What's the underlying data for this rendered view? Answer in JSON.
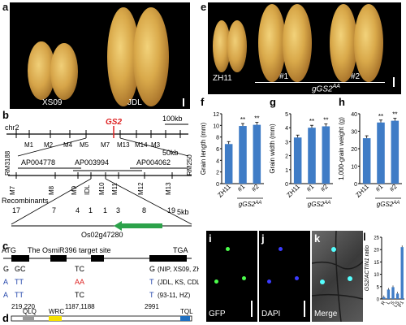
{
  "panels": {
    "a": {
      "label": "a",
      "left_text": "XS09",
      "right_text": "JDL"
    },
    "e": {
      "label": "e",
      "ctrl": "ZH11",
      "line1": "#1",
      "line2": "#2",
      "genotype": "gGS2",
      "genotype_sup": "AA"
    },
    "b": {
      "label": "b",
      "chr": "chr2",
      "gene": "GS2",
      "scale": "100kb",
      "markers_top": [
        "RM3188",
        "M1",
        "M2",
        "M4",
        "M5",
        "M7",
        "M13",
        "M14",
        "M3",
        "RM250"
      ]
    },
    "b2": {
      "scale2": "50kb",
      "bacs": [
        "AP004778",
        "AP003994",
        "AP004062"
      ],
      "markers": [
        "M7",
        "M8",
        "M9",
        "IDL",
        "M10",
        "M11",
        "M12",
        "M13"
      ],
      "recombinants_label": "Recombinants",
      "recombinants": [
        "17",
        "7",
        "4",
        "1",
        "1",
        "3",
        "8",
        "19"
      ],
      "scale3": "5kb",
      "gene_id": "Os02g47280"
    },
    "c": {
      "label": "c",
      "atg": "ATG",
      "target_text": "The OsmiR396 target site",
      "tga": "TGA",
      "col1_top": "G",
      "col1_top2": "GC",
      "col1_mid": "A",
      "col1_mid2": "TT",
      "col1_bot": "A",
      "col1_bot2": "TT",
      "col1_pos": "219,220",
      "col2_top": "TC",
      "col2_mid": "AA",
      "col2_bot": "TC",
      "col2_pos": "1187,1188",
      "col3_top": "G",
      "col3_mid": "T",
      "col3_bot": "T",
      "col3_pos": "2991",
      "note_top": "(NIP, XS09, ZH11)",
      "note_mid": "(JDL, KS, CDL)",
      "note_bot": "(93-11, HZ)"
    },
    "d": {
      "label": "d",
      "qlq": "QLQ",
      "wrc": "WRC",
      "tql": "TQL"
    },
    "f": {
      "label": "f",
      "ylabel": "Grain length (mm)"
    },
    "g": {
      "label": "g",
      "ylabel": "Grain width (mm)"
    },
    "h": {
      "label": "h",
      "ylabel": "1,000-grain weight (g)"
    },
    "i": {
      "label": "i",
      "caption": "GFP"
    },
    "j": {
      "label": "j",
      "caption": "DAPI"
    },
    "k": {
      "label": "k",
      "caption": "Merge"
    },
    "l": {
      "label": "l",
      "ylabel": "GS2/ACTIN1 ratio"
    }
  },
  "bar_color": "#3f7cc6",
  "chart_data": [
    {
      "type": "bar",
      "panel": "f",
      "categories": [
        "ZH11",
        "#1",
        "#2"
      ],
      "values": [
        6.8,
        9.9,
        10.1
      ],
      "yticks": [
        0,
        2,
        4,
        6,
        8,
        10,
        12
      ],
      "ylim": [
        0,
        12
      ],
      "ylabel": "Grain length (mm)",
      "xgroup": "gGS2",
      "xgroup_sup": "AA",
      "sig": [
        "",
        "**",
        "**"
      ]
    },
    {
      "type": "bar",
      "panel": "g",
      "categories": [
        "ZH11",
        "#1",
        "#2"
      ],
      "values": [
        3.3,
        4.0,
        4.1
      ],
      "yticks": [
        0,
        1,
        2,
        3,
        4,
        5
      ],
      "ylim": [
        0,
        5
      ],
      "ylabel": "Grain width (mm)",
      "xgroup": "gGS2",
      "xgroup_sup": "AA",
      "sig": [
        "",
        "**",
        "**"
      ]
    },
    {
      "type": "bar",
      "panel": "h",
      "categories": [
        "ZH11",
        "#1",
        "#2"
      ],
      "values": [
        26,
        35,
        36
      ],
      "yticks": [
        0,
        10,
        20,
        30,
        40
      ],
      "ylim": [
        0,
        40
      ],
      "ylabel": "1,000-grain weight (g)",
      "xgroup": "gGS2",
      "xgroup_sup": "AA",
      "sig": [
        "",
        "**",
        "**"
      ]
    },
    {
      "type": "bar",
      "panel": "l",
      "categories": [
        "R",
        "L",
        "S",
        "LS",
        "P1"
      ],
      "values": [
        0.8,
        3.8,
        4.8,
        2.2,
        21
      ],
      "yticks": [
        0,
        5,
        10,
        15,
        20,
        25
      ],
      "ylim": [
        0,
        25
      ],
      "ylabel": "GS2/ACTIN1 ratio"
    }
  ]
}
